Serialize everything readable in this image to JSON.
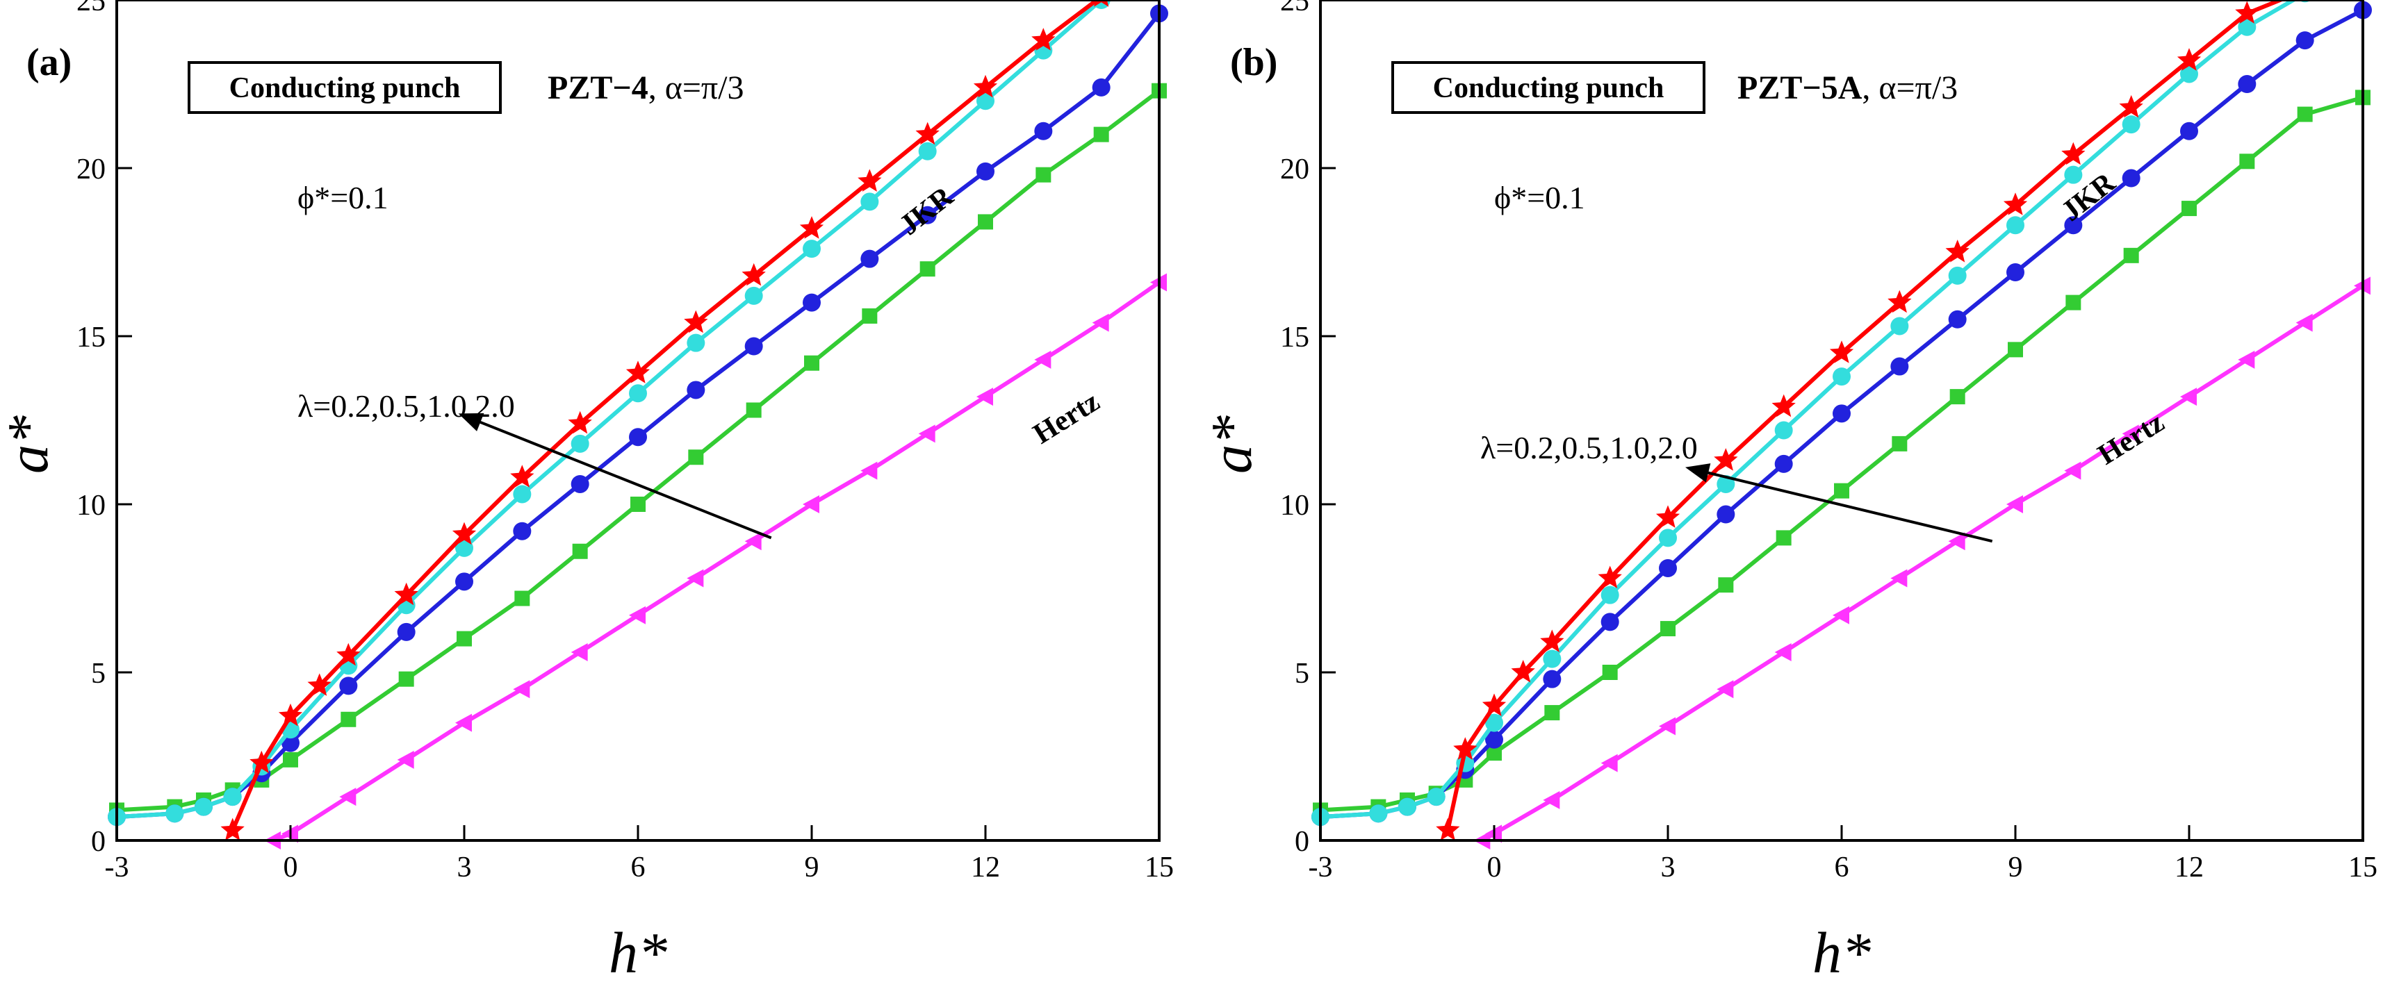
{
  "chart_data": [
    {
      "type": "line",
      "panel": "(a)",
      "box_label": "Conducting punch",
      "material": "PZT−4",
      "angle": "α=π/3",
      "phi_label": "ϕ*=0.1",
      "lambda_label": "λ=0.2,0.5,1.0,2.0",
      "jkr_label": "JKR",
      "hertz_label": "Hertz",
      "xlabel": "h*",
      "ylabel": "a*",
      "xlim": [
        -3,
        15
      ],
      "ylim": [
        0,
        25
      ],
      "xticks": [
        -3,
        0,
        3,
        6,
        9,
        12,
        15
      ],
      "yticks": [
        0,
        5,
        10,
        15,
        20,
        25
      ],
      "lambda_arrow": {
        "from": [
          8.3,
          9
        ],
        "to": [
          2.9,
          12.7
        ]
      },
      "series": [
        {
          "name": "Hertz",
          "color": "#ff33ff",
          "marker": "triangle-left",
          "x": [
            -0.3,
            0,
            1,
            2,
            3,
            4,
            5,
            6,
            7,
            8,
            9,
            10,
            11,
            12,
            13,
            14,
            15
          ],
          "y": [
            0,
            0.2,
            1.3,
            2.4,
            3.5,
            4.5,
            5.6,
            6.7,
            7.8,
            8.9,
            10.0,
            11.0,
            12.1,
            13.2,
            14.3,
            15.4,
            16.6
          ]
        },
        {
          "name": "λ=2.0",
          "color": "#33cc33",
          "marker": "square",
          "x": [
            -3,
            -2,
            -1.5,
            -1,
            -0.5,
            0,
            1,
            2,
            3,
            4,
            5,
            6,
            7,
            8,
            9,
            10,
            11,
            12,
            13,
            14,
            15
          ],
          "y": [
            0.9,
            1.0,
            1.2,
            1.5,
            1.8,
            2.4,
            3.6,
            4.8,
            6.0,
            7.2,
            8.6,
            10.0,
            11.4,
            12.8,
            14.2,
            15.6,
            17.0,
            18.4,
            19.8,
            21.0,
            22.3
          ]
        },
        {
          "name": "λ=1.0",
          "color": "#2222dd",
          "marker": "circle",
          "x": [
            -3,
            -2,
            -1.5,
            -1,
            -0.5,
            0,
            1,
            2,
            3,
            4,
            5,
            6,
            7,
            8,
            9,
            10,
            11,
            12,
            13,
            14,
            15
          ],
          "y": [
            0.7,
            0.8,
            1.0,
            1.3,
            2.0,
            2.9,
            4.6,
            6.2,
            7.7,
            9.2,
            10.6,
            12.0,
            13.4,
            14.7,
            16.0,
            17.3,
            18.6,
            19.9,
            21.1,
            22.4,
            24.6
          ]
        },
        {
          "name": "λ=0.5",
          "color": "#33dddd",
          "marker": "circle",
          "x": [
            -3,
            -2,
            -1.5,
            -1,
            -0.5,
            0,
            1,
            2,
            3,
            4,
            5,
            6,
            7,
            8,
            9,
            10,
            11,
            12,
            13,
            14
          ],
          "y": [
            0.7,
            0.8,
            1.0,
            1.3,
            2.2,
            3.3,
            5.2,
            7.0,
            8.7,
            10.3,
            11.8,
            13.3,
            14.8,
            16.2,
            17.6,
            19.0,
            20.5,
            22.0,
            23.5,
            25.0
          ]
        },
        {
          "name": "λ=0.2 (JKR)",
          "color": "#ff0000",
          "marker": "star",
          "x": [
            -1.0,
            -0.5,
            0,
            0.5,
            1,
            2,
            3,
            4,
            5,
            6,
            7,
            8,
            9,
            10,
            11,
            12,
            13,
            14
          ],
          "y": [
            0.3,
            2.3,
            3.7,
            4.6,
            5.5,
            7.3,
            9.1,
            10.8,
            12.4,
            13.9,
            15.4,
            16.8,
            18.2,
            19.6,
            21.0,
            22.4,
            23.8,
            25.1
          ]
        }
      ]
    },
    {
      "type": "line",
      "panel": "(b)",
      "box_label": "Conducting punch",
      "material": "PZT−5A",
      "angle": "α=π/3",
      "phi_label": "ϕ*=0.1",
      "lambda_label": "λ=0.2,0.5,1.0,2.0",
      "jkr_label": "JKR",
      "hertz_label": "Hertz",
      "xlabel": "h*",
      "ylabel": "a*",
      "xlim": [
        -3,
        15
      ],
      "ylim": [
        0,
        25
      ],
      "xticks": [
        -3,
        0,
        3,
        6,
        9,
        12,
        15
      ],
      "yticks": [
        0,
        5,
        10,
        15,
        20,
        25
      ],
      "lambda_arrow": {
        "from": [
          8.6,
          8.9
        ],
        "to": [
          3.3,
          11.1
        ]
      },
      "series": [
        {
          "name": "Hertz",
          "color": "#ff33ff",
          "marker": "triangle-left",
          "x": [
            -0.2,
            0,
            1,
            2,
            3,
            4,
            5,
            6,
            7,
            8,
            9,
            10,
            11,
            12,
            13,
            14,
            15
          ],
          "y": [
            0,
            0.2,
            1.2,
            2.3,
            3.4,
            4.5,
            5.6,
            6.7,
            7.8,
            8.9,
            10.0,
            11.0,
            12.1,
            13.2,
            14.3,
            15.4,
            16.5
          ]
        },
        {
          "name": "λ=2.0",
          "color": "#33cc33",
          "marker": "square",
          "x": [
            -3,
            -2,
            -1.5,
            -1,
            -0.5,
            0,
            1,
            2,
            3,
            4,
            5,
            6,
            7,
            8,
            9,
            10,
            11,
            12,
            13,
            14,
            15
          ],
          "y": [
            0.9,
            1.0,
            1.2,
            1.4,
            1.8,
            2.6,
            3.8,
            5.0,
            6.3,
            7.6,
            9.0,
            10.4,
            11.8,
            13.2,
            14.6,
            16.0,
            17.4,
            18.8,
            20.2,
            21.6,
            22.1
          ]
        },
        {
          "name": "λ=1.0",
          "color": "#2222dd",
          "marker": "circle",
          "x": [
            -3,
            -2,
            -1.5,
            -1,
            -0.5,
            0,
            1,
            2,
            3,
            4,
            5,
            6,
            7,
            8,
            9,
            10,
            11,
            12,
            13,
            14,
            15
          ],
          "y": [
            0.7,
            0.8,
            1.0,
            1.3,
            2.1,
            3.0,
            4.8,
            6.5,
            8.1,
            9.7,
            11.2,
            12.7,
            14.1,
            15.5,
            16.9,
            18.3,
            19.7,
            21.1,
            22.5,
            23.8,
            24.7
          ]
        },
        {
          "name": "λ=0.5",
          "color": "#33dddd",
          "marker": "circle",
          "x": [
            -3,
            -2,
            -1.5,
            -1,
            -0.5,
            0,
            1,
            2,
            3,
            4,
            5,
            6,
            7,
            8,
            9,
            10,
            11,
            12,
            13,
            14
          ],
          "y": [
            0.7,
            0.8,
            1.0,
            1.3,
            2.3,
            3.5,
            5.4,
            7.3,
            9.0,
            10.6,
            12.2,
            13.8,
            15.3,
            16.8,
            18.3,
            19.8,
            21.3,
            22.8,
            24.2,
            25.2
          ]
        },
        {
          "name": "λ=0.2 (JKR)",
          "color": "#ff0000",
          "marker": "star",
          "x": [
            -0.8,
            -0.5,
            0,
            0.5,
            1,
            2,
            3,
            4,
            5,
            6,
            7,
            8,
            9,
            10,
            11,
            12,
            13,
            14
          ],
          "y": [
            0.3,
            2.7,
            4.0,
            5.0,
            5.9,
            7.8,
            9.6,
            11.3,
            12.9,
            14.5,
            16.0,
            17.5,
            18.9,
            20.4,
            21.8,
            23.2,
            24.6,
            25.3
          ]
        }
      ]
    }
  ]
}
